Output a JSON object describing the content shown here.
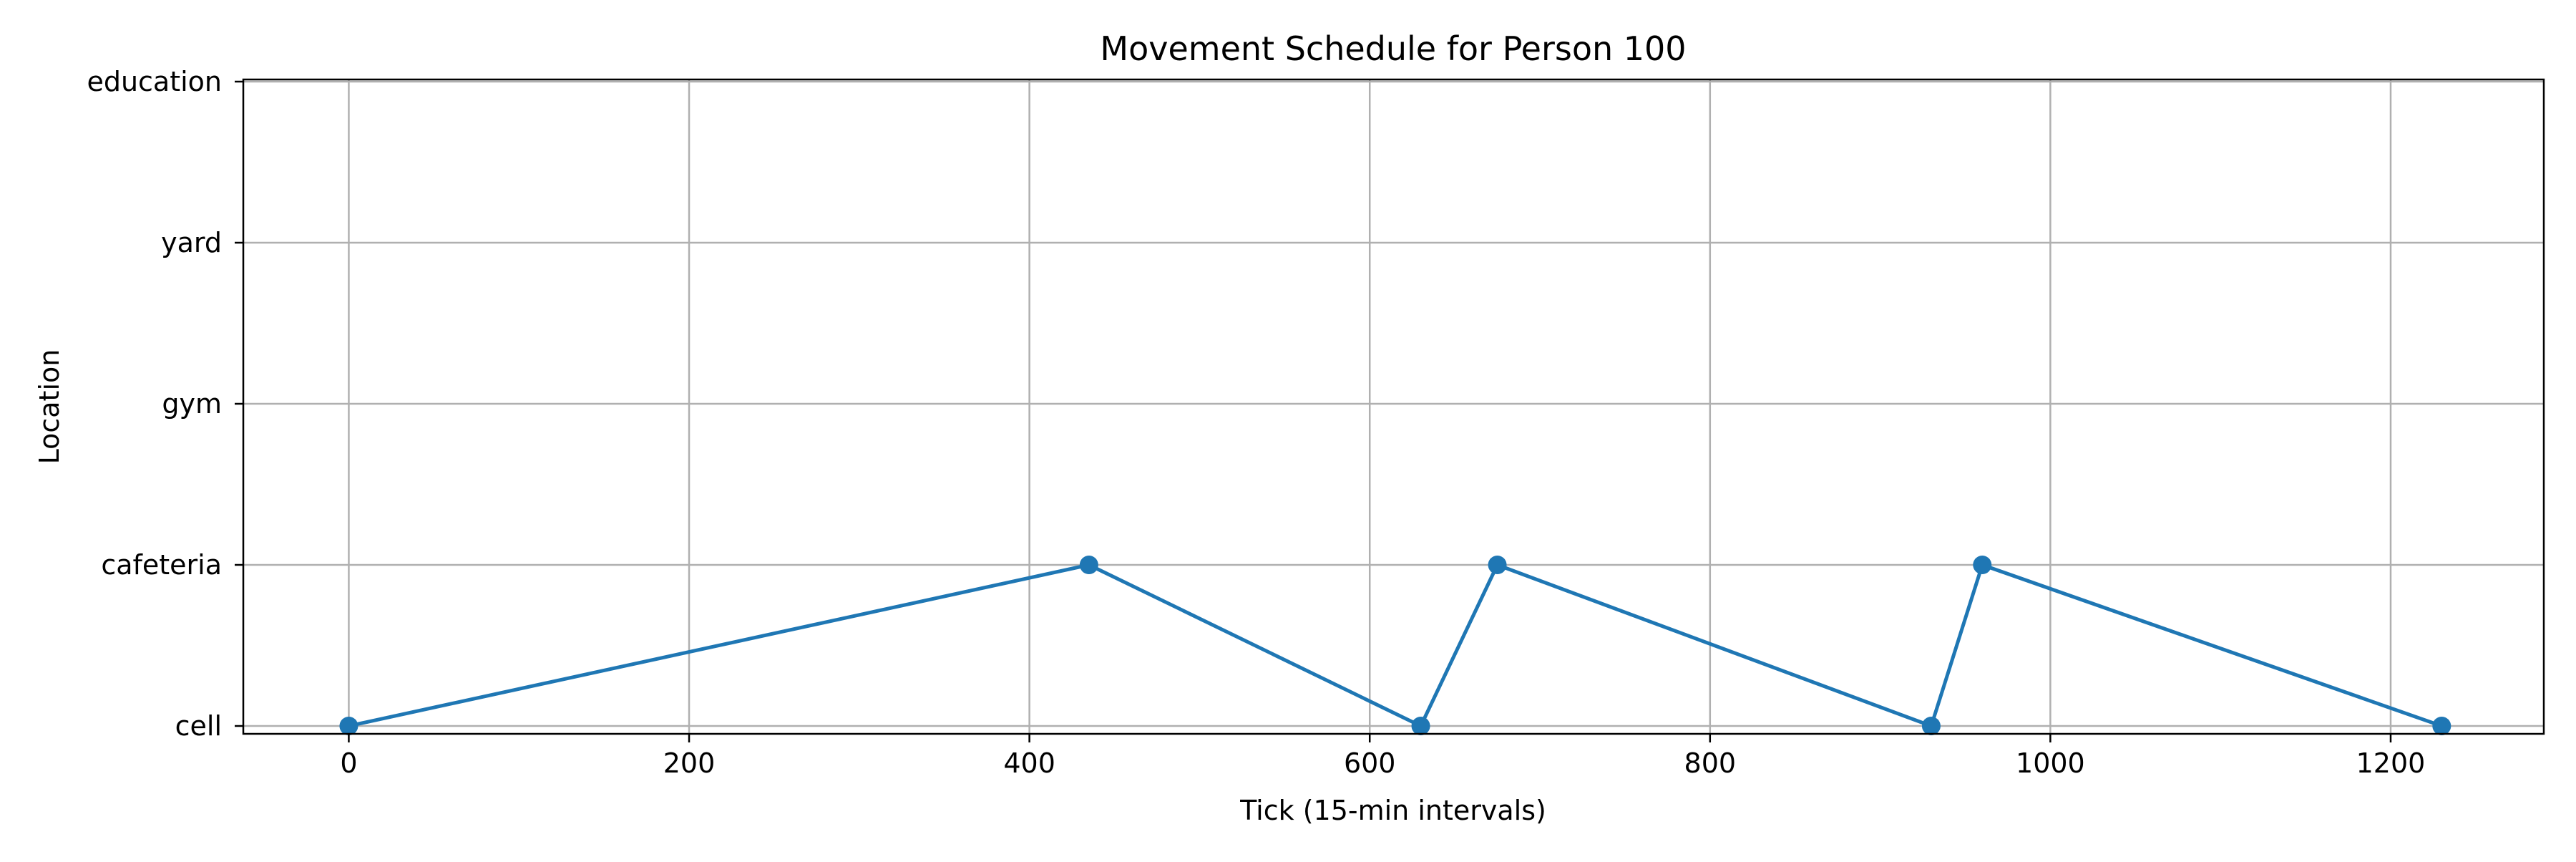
{
  "chart_data": {
    "type": "line",
    "title": "Movement Schedule for Person 100",
    "xlabel": "Tick (15-min intervals)",
    "ylabel": "Location",
    "xlim": [
      -62,
      1290
    ],
    "x_ticks": [
      0,
      200,
      400,
      600,
      800,
      1000,
      1200
    ],
    "y_categories": [
      "cell",
      "cafeteria",
      "gym",
      "yard",
      "education"
    ],
    "grid": true,
    "series": [
      {
        "color": "#1f77b4",
        "marker": "circle",
        "points": [
          {
            "x": 0,
            "y": "cell"
          },
          {
            "x": 435,
            "y": "cafeteria"
          },
          {
            "x": 630,
            "y": "cell"
          },
          {
            "x": 675,
            "y": "cafeteria"
          },
          {
            "x": 930,
            "y": "cell"
          },
          {
            "x": 960,
            "y": "cafeteria"
          },
          {
            "x": 1230,
            "y": "cell"
          }
        ]
      }
    ]
  }
}
